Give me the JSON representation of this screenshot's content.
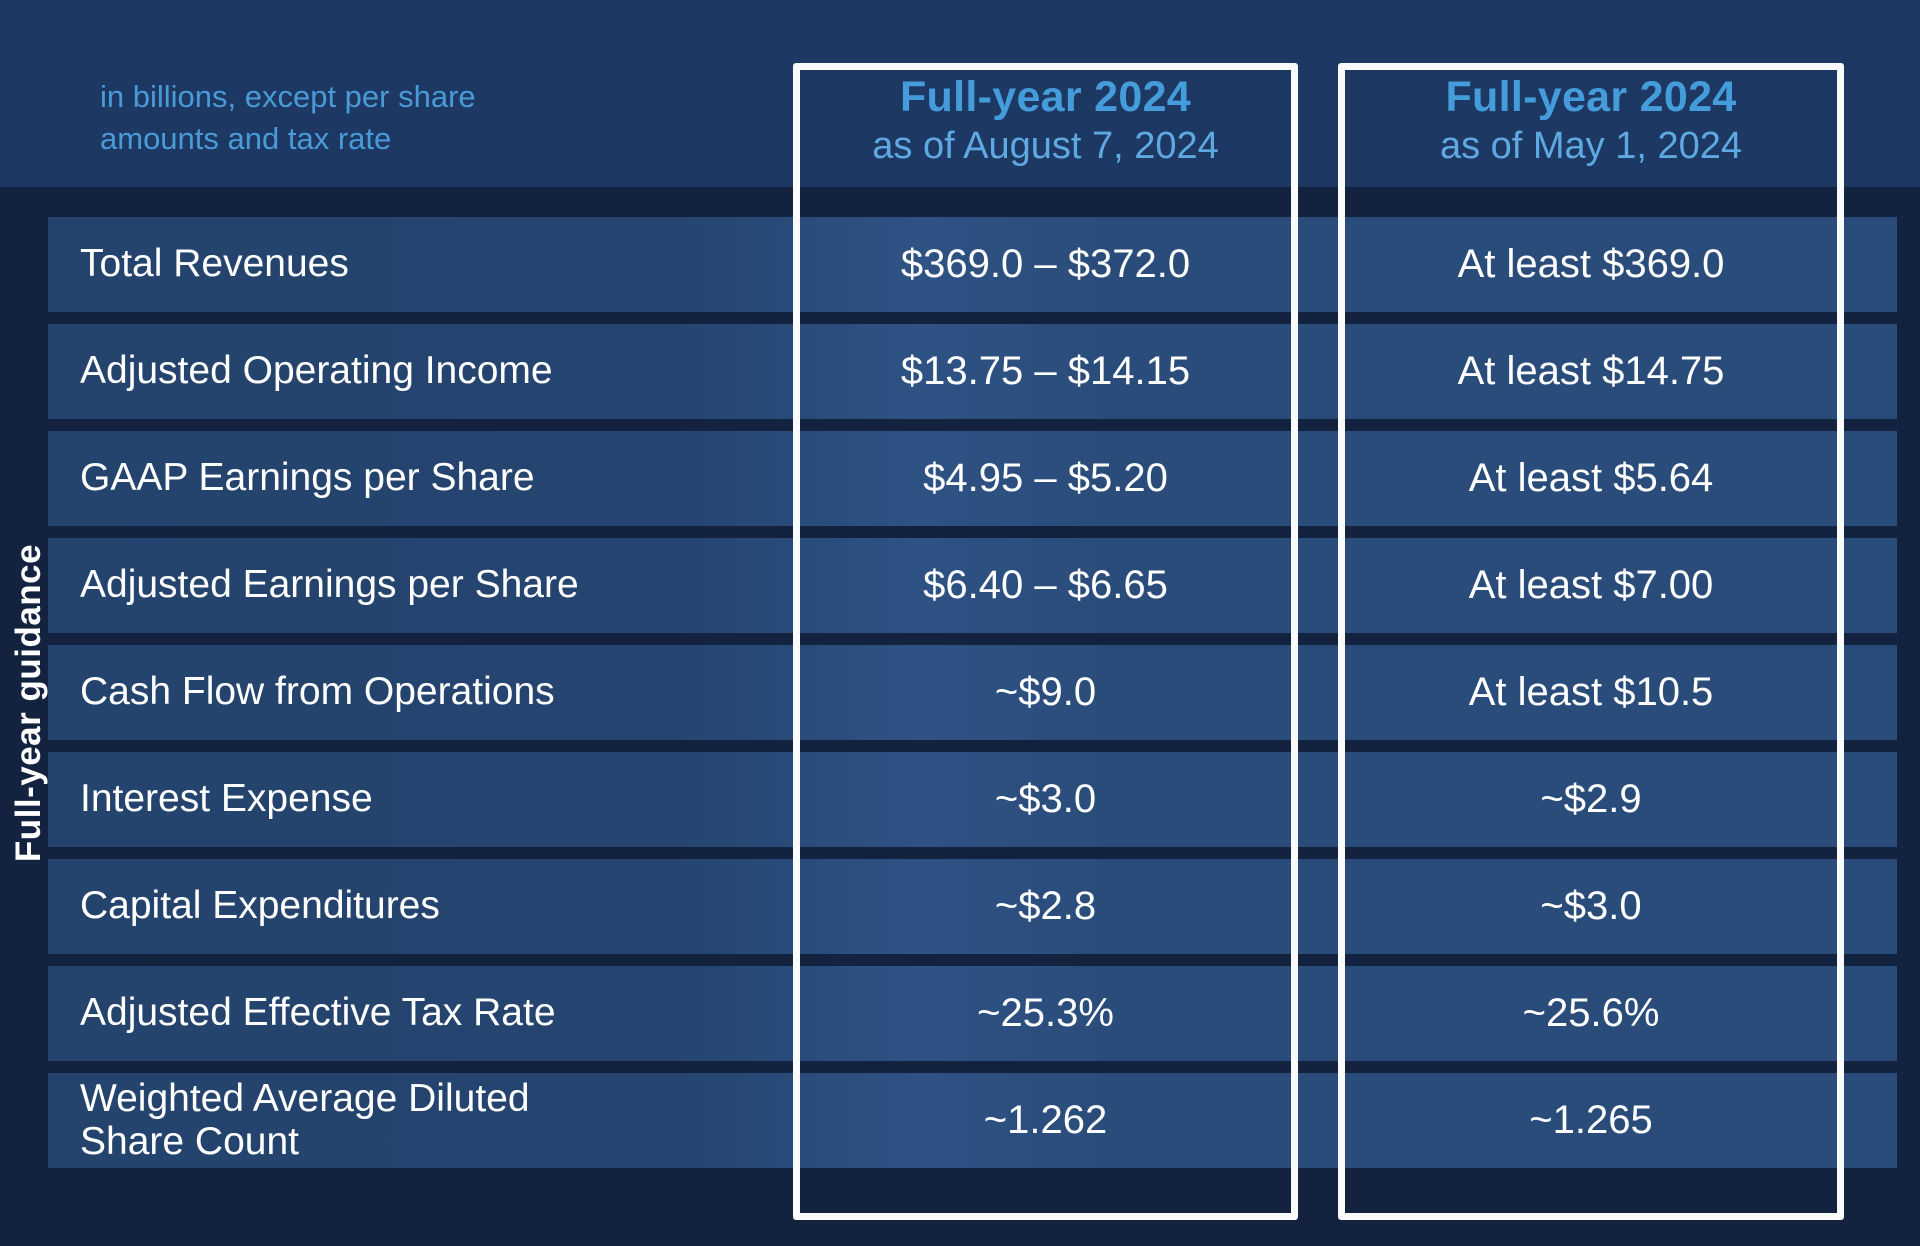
{
  "chart_data": {
    "type": "table",
    "sidebar_title": "Full-year guidance",
    "units_note": "in billions, except per share\namounts and tax rate",
    "col_headers": [
      {
        "title": "Full-year 2024",
        "subtitle": "as of August 7, 2024"
      },
      {
        "title": "Full-year 2024",
        "subtitle": "as of May 1, 2024"
      }
    ],
    "rows": [
      {
        "label": "Total Revenues",
        "as_of_aug7": "$369.0 – $372.0",
        "as_of_may1": "At least $369.0"
      },
      {
        "label": "Adjusted Operating Income",
        "as_of_aug7": "$13.75 – $14.15",
        "as_of_may1": "At least $14.75"
      },
      {
        "label": "GAAP Earnings per Share",
        "as_of_aug7": "$4.95 – $5.20",
        "as_of_may1": "At least $5.64"
      },
      {
        "label": "Adjusted Earnings per Share",
        "as_of_aug7": "$6.40 – $6.65",
        "as_of_may1": "At least $7.00"
      },
      {
        "label": "Cash Flow from Operations",
        "as_of_aug7": "~$9.0",
        "as_of_may1": "At least $10.5"
      },
      {
        "label": "Interest Expense",
        "as_of_aug7": "~$3.0",
        "as_of_may1": "~$2.9"
      },
      {
        "label": "Capital Expenditures",
        "as_of_aug7": "~$2.8",
        "as_of_may1": "~$3.0"
      },
      {
        "label": "Adjusted Effective Tax Rate",
        "as_of_aug7": "~25.3%",
        "as_of_may1": "~25.6%"
      },
      {
        "label": "Weighted Average Diluted\nShare Count",
        "as_of_aug7": "~1.262",
        "as_of_may1": "~1.265"
      }
    ],
    "colors": {
      "background_top": "#1D3862",
      "background_table": "#13233F",
      "row_band": "#2A4C7A",
      "accent_blue_title": "#459CDB",
      "accent_blue_subtitle": "#5FA9E2",
      "note_blue": "#4B9AD8",
      "box_border": "#F8FAFC",
      "text_white": "#FFFFFF"
    }
  }
}
